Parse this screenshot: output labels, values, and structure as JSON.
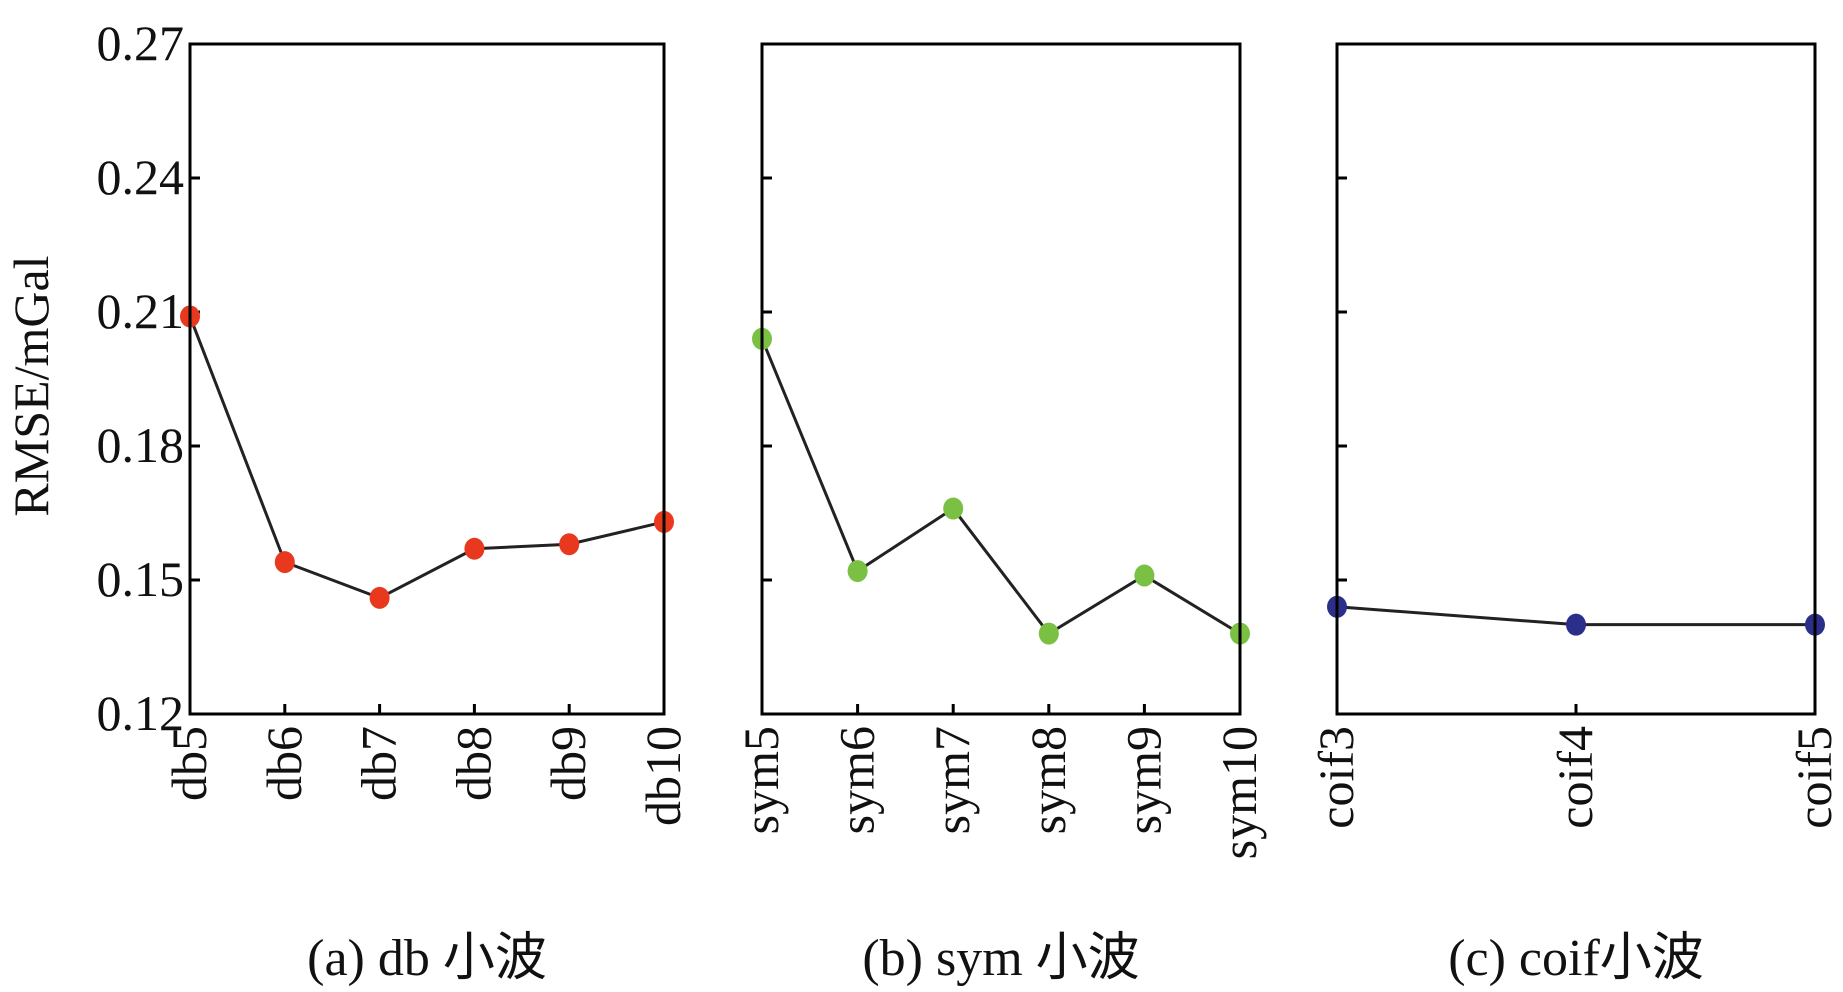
{
  "y_axis_label": "RMSE/mGal",
  "chart_data": [
    {
      "type": "line",
      "caption": "(a) db 小波",
      "categories": [
        "db5",
        "db6",
        "db7",
        "db8",
        "db9",
        "db10"
      ],
      "values": [
        0.209,
        0.154,
        0.146,
        0.157,
        0.158,
        0.163
      ],
      "color": "#e8391f",
      "ylabel": "RMSE/mGal",
      "ylim": [
        0.12,
        0.27
      ],
      "yticks": [
        "0.12",
        "0.15",
        "0.18",
        "0.21",
        "0.24",
        "0.27"
      ],
      "grid": false
    },
    {
      "type": "line",
      "caption": "(b) sym 小波",
      "categories": [
        "sym5",
        "sym6",
        "sym7",
        "sym8",
        "sym9",
        "sym10"
      ],
      "values": [
        0.204,
        0.152,
        0.166,
        0.138,
        0.151,
        0.138
      ],
      "color": "#7ac143",
      "ylim": [
        0.12,
        0.27
      ],
      "grid": false
    },
    {
      "type": "line",
      "caption": "(c) coif小波",
      "categories": [
        "coif3",
        "coif4",
        "coif5"
      ],
      "values": [
        0.144,
        0.14,
        0.14
      ],
      "color": "#2b2f8a",
      "ylim": [
        0.12,
        0.27
      ],
      "grid": false
    }
  ]
}
